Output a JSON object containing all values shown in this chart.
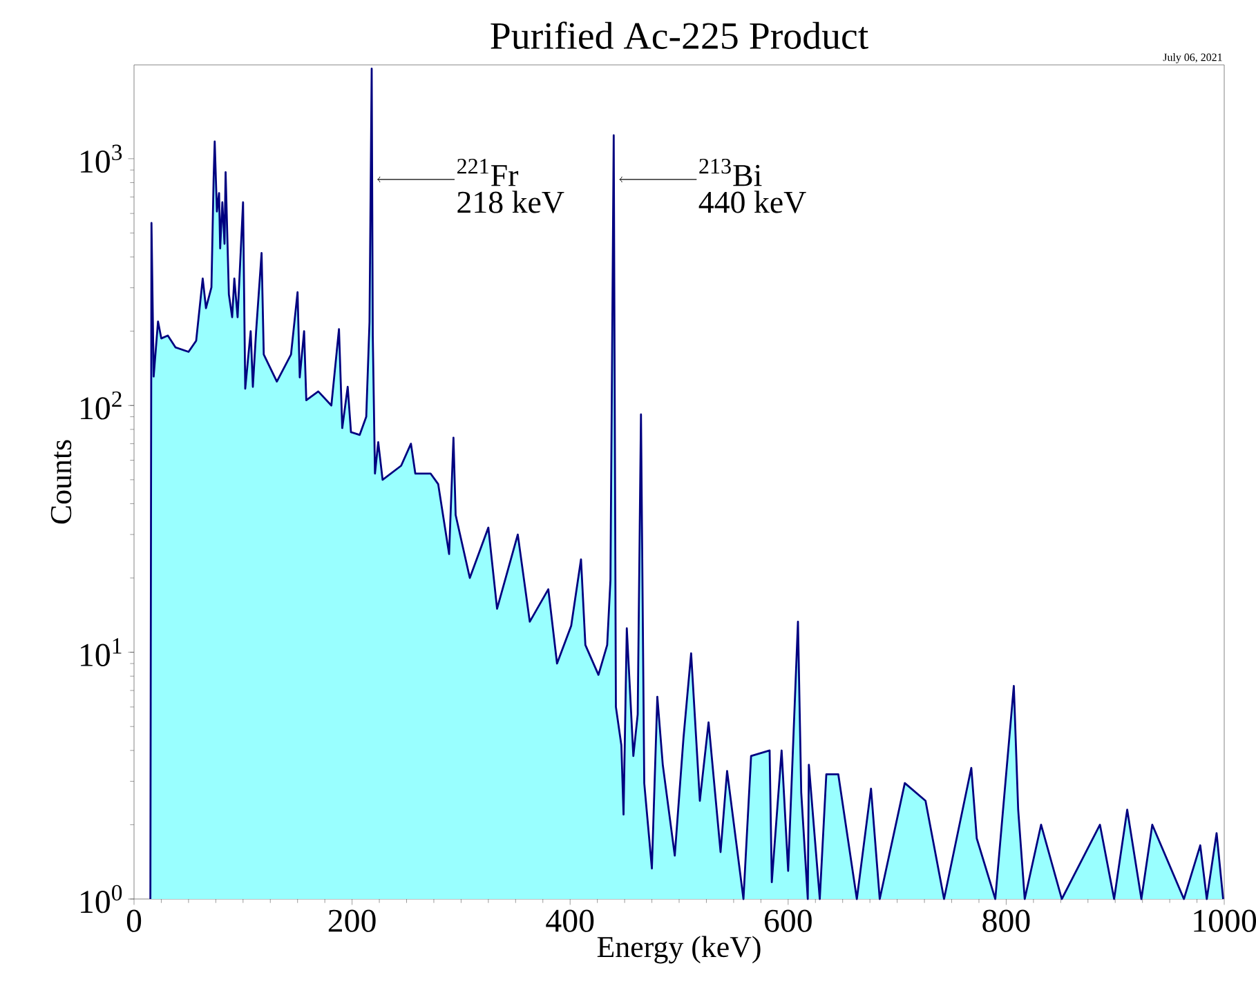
{
  "chart_data": {
    "type": "area",
    "title": "Purified Ac-225 Product",
    "xlabel": "Energy (keV)",
    "ylabel": "Counts",
    "log": "y",
    "xlim": [
      0,
      1000
    ],
    "xticks": [
      0,
      200,
      400,
      600,
      800,
      1000
    ],
    "ylim": [
      1,
      2400
    ],
    "yticks": [
      {
        "value": 1,
        "label": "10$^{0}$"
      },
      {
        "value": 10,
        "label": "10$^{1}$"
      },
      {
        "value": 100,
        "label": "10$^{2}$"
      },
      {
        "value": 1000,
        "label": "10$^{3}$"
      }
    ],
    "annotations": [
      "July 06, 2021",
      {
        "text": "$^{221}$Fr",
        "x": 218,
        "y": 824
      },
      "218 keV",
      {
        "text": "$^{213}$Bi",
        "x": 440,
        "y": 824
      },
      "440 keV"
    ],
    "x": [
      15,
      16,
      18,
      22,
      25,
      31,
      38,
      50,
      57,
      63,
      66,
      71,
      73,
      74,
      76,
      78,
      79,
      81,
      83,
      84,
      87,
      90,
      92,
      95,
      100,
      102,
      107,
      109,
      112,
      117,
      119,
      131,
      144,
      150,
      152,
      156,
      158,
      169,
      181,
      188,
      191,
      196,
      199,
      207,
      213,
      216,
      218,
      219,
      221,
      224,
      228,
      245,
      254,
      258,
      272,
      279,
      289,
      293,
      295,
      308,
      325,
      333,
      352,
      363,
      380,
      388,
      401,
      410,
      414,
      426,
      434,
      437,
      440,
      442,
      447,
      449,
      452,
      458,
      462,
      465,
      468,
      475,
      480,
      485,
      496,
      504,
      511,
      519,
      527,
      538,
      544,
      559,
      566,
      583,
      585,
      594,
      600,
      609,
      612,
      618,
      619,
      629,
      635,
      646,
      663,
      676,
      684,
      707,
      726,
      743,
      768,
      773,
      790,
      807,
      811,
      817,
      832,
      851,
      886,
      899,
      911,
      924,
      934,
      963,
      978,
      984,
      993,
      999
    ],
    "series": [
      {
        "color": "#99ffff",
        "values": [
          1,
          549,
          131,
          219,
          187,
          192,
          172,
          165,
          183,
          327,
          248,
          301,
          826,
          1175,
          611,
          726,
          433,
          666,
          452,
          882,
          282,
          228,
          327,
          228,
          666,
          117,
          200,
          119,
          200,
          415,
          161,
          125,
          161,
          288,
          130,
          200,
          105,
          114,
          100,
          204,
          81,
          119,
          78,
          76,
          90,
          218,
          2317,
          191,
          53,
          71,
          50,
          57,
          70,
          53,
          53,
          48,
          25,
          74,
          36,
          20,
          32,
          15,
          30,
          13.3,
          18,
          9.0,
          12.8,
          23.8,
          10.7,
          8.1,
          10.7,
          19.6,
          1244,
          6.0,
          4.2,
          2.2,
          12.5,
          3.8,
          5.6,
          92,
          2.95,
          1.33,
          6.6,
          3.5,
          1.5,
          4.5,
          9.9,
          2.5,
          5.2,
          1.55,
          3.3,
          1,
          3.8,
          4.0,
          1.17,
          4.0,
          1.3,
          13.3,
          2.7,
          1,
          3.5,
          1,
          3.2,
          3.2,
          1,
          2.8,
          1,
          2.95,
          2.5,
          1,
          3.4,
          1.76,
          1,
          7.3,
          2.3,
          1,
          2.0,
          1,
          2.0,
          1,
          2.3,
          1,
          2.0,
          1,
          1.65,
          1,
          1.85,
          1
        ]
      }
    ]
  }
}
